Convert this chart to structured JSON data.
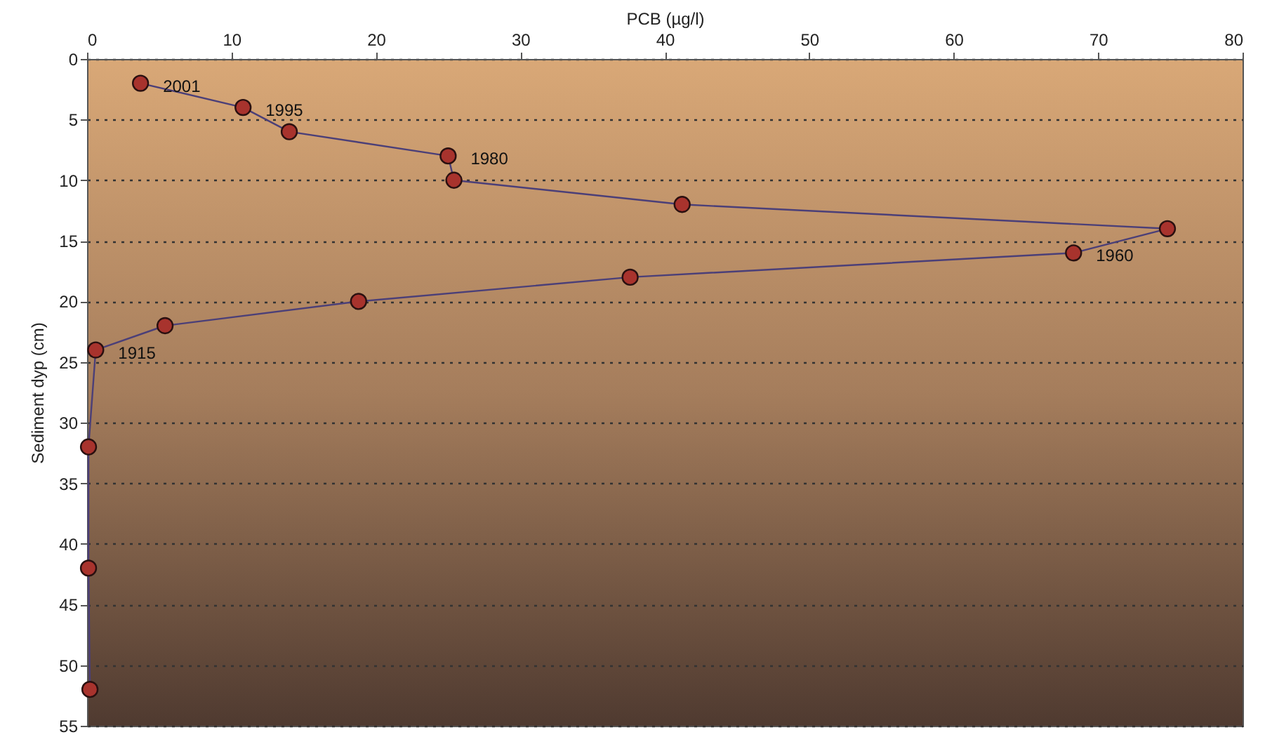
{
  "chart_data": {
    "type": "line",
    "xlabel": "PCB (µg/l)",
    "ylabel": "Sediment dyp (cm)",
    "xlim": [
      0,
      80
    ],
    "xticks": [
      0,
      10,
      20,
      30,
      40,
      50,
      60,
      70,
      80
    ],
    "ylim": [
      55,
      0
    ],
    "yticks": [
      0,
      5,
      10,
      15,
      20,
      25,
      30,
      35,
      40,
      45,
      50,
      55
    ],
    "grid": "y",
    "marker": "circle",
    "line_style": "solid",
    "series": [
      {
        "color": "#a8332d",
        "x": [
          3.7,
          10.8,
          14,
          25,
          25.4,
          41.2,
          74.8,
          68.3,
          37.6,
          18.8,
          5.4,
          0.6,
          0.1,
          0.1,
          0.2
        ],
        "values": [
          2,
          4,
          6,
          8,
          10,
          12,
          14,
          16,
          18,
          20,
          22,
          24,
          32,
          42,
          52
        ]
      }
    ],
    "annotations": [
      {
        "text": "2001",
        "x": 3.7,
        "y": 2
      },
      {
        "text": "1995",
        "x": 10.8,
        "y": 4
      },
      {
        "text": "1980",
        "x": 25,
        "y": 8
      },
      {
        "text": "1960",
        "x": 68.3,
        "y": 16
      },
      {
        "text": "1915",
        "x": 0.6,
        "y": 24
      }
    ]
  }
}
